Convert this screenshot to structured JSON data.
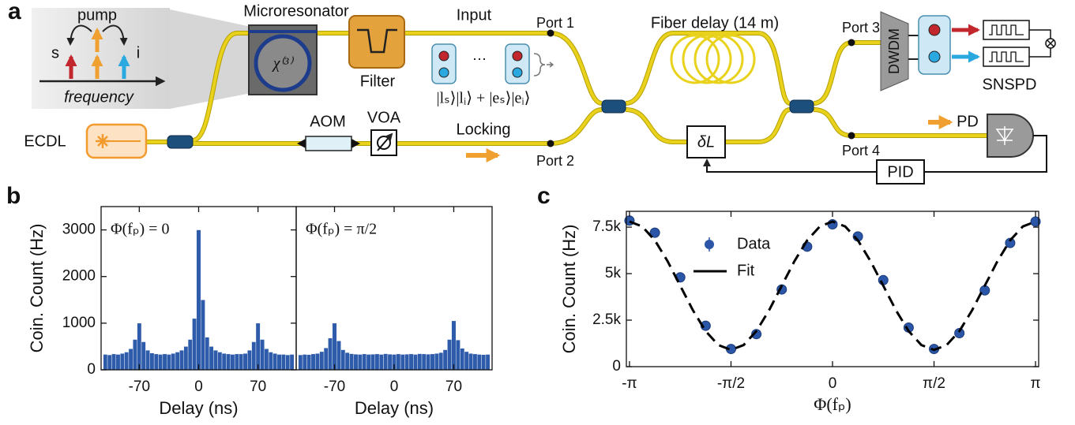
{
  "diagram": {
    "panel_label": "a",
    "inset": {
      "pump": "pump",
      "s": "s",
      "i": "i",
      "frequency": "frequency"
    },
    "microresonator": "Microresonator",
    "chi": "χ⁽³⁾",
    "filter": "Filter",
    "input": "Input",
    "port1": "Port 1",
    "port2": "Port 2",
    "port3": "Port 3",
    "port4": "Port 4",
    "locking": "Locking",
    "voa": "VOA",
    "aom": "AOM",
    "ecdl": "ECDL",
    "dots": "⋯",
    "state": "|lₛ⟩|lᵢ⟩ + |eₛ⟩|eᵢ⟩",
    "fiber_delay": "Fiber delay (14 m)",
    "delta_l": "δL",
    "dwdm": "DWDM",
    "snspd": "SNSPD",
    "pd": "PD",
    "pid": "PID"
  },
  "chart_data": [
    {
      "type": "histogram",
      "panel_label": "b",
      "annotation": "Φ(fₚ) = 0",
      "xlabel": "Delay (ns)",
      "ylabel": "Coin. Count (Hz)",
      "color": "#2e5caa",
      "bins": [
        -112.5,
        -107.5,
        -102.5,
        -97.5,
        -92.5,
        -87.5,
        -82.5,
        -77.5,
        -72.5,
        -67.5,
        -62.5,
        -57.5,
        -52.5,
        -47.5,
        -42.5,
        -37.5,
        -32.5,
        -27.5,
        -22.5,
        -17.5,
        -12.5,
        -7.5,
        -2.5,
        2.5,
        7.5,
        12.5,
        17.5,
        22.5,
        27.5,
        32.5,
        37.5,
        42.5,
        47.5,
        52.5,
        57.5,
        62.5,
        67.5,
        72.5,
        77.5,
        82.5,
        87.5,
        92.5,
        97.5,
        102.5,
        107.5,
        112.5
      ],
      "values": [
        330,
        320,
        340,
        330,
        350,
        380,
        450,
        650,
        1000,
        600,
        420,
        360,
        340,
        330,
        340,
        330,
        350,
        380,
        420,
        500,
        650,
        1100,
        3000,
        1500,
        700,
        500,
        420,
        380,
        350,
        340,
        330,
        340,
        340,
        350,
        420,
        600,
        1000,
        650,
        450,
        380,
        350,
        330,
        330,
        320,
        330
      ],
      "xlim": [
        -115,
        115
      ],
      "ylim": [
        0,
        3500
      ],
      "xticks": [
        -70,
        0,
        70
      ],
      "yticks": [
        0,
        1000,
        2000,
        3000
      ]
    },
    {
      "type": "histogram",
      "annotation": "Φ(fₚ) = π/2",
      "xlabel": "Delay (ns)",
      "color": "#2e5caa",
      "bins": [
        -112.5,
        -107.5,
        -102.5,
        -97.5,
        -92.5,
        -87.5,
        -82.5,
        -77.5,
        -72.5,
        -67.5,
        -62.5,
        -57.5,
        -52.5,
        -47.5,
        -42.5,
        -37.5,
        -32.5,
        -27.5,
        -22.5,
        -17.5,
        -12.5,
        -7.5,
        -2.5,
        2.5,
        7.5,
        12.5,
        17.5,
        22.5,
        27.5,
        32.5,
        37.5,
        42.5,
        47.5,
        52.5,
        57.5,
        62.5,
        67.5,
        72.5,
        77.5,
        82.5,
        87.5,
        92.5,
        97.5,
        102.5,
        107.5,
        112.5
      ],
      "values": [
        320,
        330,
        325,
        340,
        350,
        390,
        470,
        680,
        1000,
        620,
        430,
        370,
        345,
        335,
        330,
        340,
        330,
        335,
        340,
        330,
        345,
        335,
        330,
        340,
        330,
        335,
        340,
        330,
        345,
        340,
        335,
        340,
        350,
        370,
        430,
        650,
        1050,
        640,
        460,
        390,
        350,
        340,
        330,
        325,
        330
      ],
      "xlim": [
        -115,
        115
      ],
      "ylim": [
        0,
        3500
      ],
      "xticks": [
        -70,
        0,
        70
      ]
    },
    {
      "type": "scatter",
      "panel_label": "c",
      "xlabel": "Φ(fₚ)",
      "ylabel": "Coin. Count (Hz)",
      "legend": "upper left",
      "series": [
        {
          "name": "Data",
          "color": "#2b56a8",
          "style": "markers",
          "x": [
            -3.1416,
            -2.7489,
            -2.3562,
            -1.9635,
            -1.5708,
            -1.1781,
            -0.7854,
            -0.3927,
            0,
            0.3927,
            0.7854,
            1.1781,
            1.5708,
            1.9635,
            2.3562,
            2.7489,
            3.1416
          ],
          "values": [
            7850,
            7200,
            4800,
            2200,
            950,
            1750,
            4150,
            6450,
            7650,
            7000,
            4650,
            2100,
            950,
            1800,
            4100,
            6650,
            7800
          ]
        },
        {
          "name": "Fit",
          "color": "#000000",
          "style": "dashed",
          "x": [
            -3.1416,
            -2.9452,
            -2.7489,
            -2.5525,
            -2.3562,
            -2.1598,
            -1.9635,
            -1.7671,
            -1.5708,
            -1.3744,
            -1.1781,
            -0.9817,
            -0.7854,
            -0.589,
            -0.3927,
            -0.1963,
            0,
            0.1963,
            0.3927,
            0.589,
            0.7854,
            0.9817,
            1.1781,
            1.3744,
            1.5708,
            1.7671,
            1.9635,
            2.1598,
            2.3562,
            2.5525,
            2.7489,
            2.9452,
            3.1416
          ],
          "values": [
            7800,
            7537,
            6790,
            5670,
            4350,
            3030,
            1910,
            1163,
            900,
            1163,
            1910,
            3030,
            4350,
            5670,
            6790,
            7537,
            7800,
            7537,
            6790,
            5670,
            4350,
            3030,
            1910,
            1163,
            900,
            1163,
            1910,
            3030,
            4350,
            5670,
            6790,
            7537,
            7800
          ]
        }
      ],
      "xlim": [
        -3.19,
        3.19
      ],
      "ylim": [
        0,
        8350
      ],
      "xticks": [
        {
          "value": -3.1416,
          "label": "-π"
        },
        {
          "value": -1.5708,
          "label": "-π/2"
        },
        0,
        {
          "value": 1.5708,
          "label": "π/2"
        },
        {
          "value": 3.1416,
          "label": "π"
        }
      ],
      "yticks": [
        0,
        {
          "value": 2500,
          "label": "2.5k"
        },
        {
          "value": 5000,
          "label": "5k"
        },
        {
          "value": 7500,
          "label": "7.5k"
        }
      ]
    }
  ]
}
